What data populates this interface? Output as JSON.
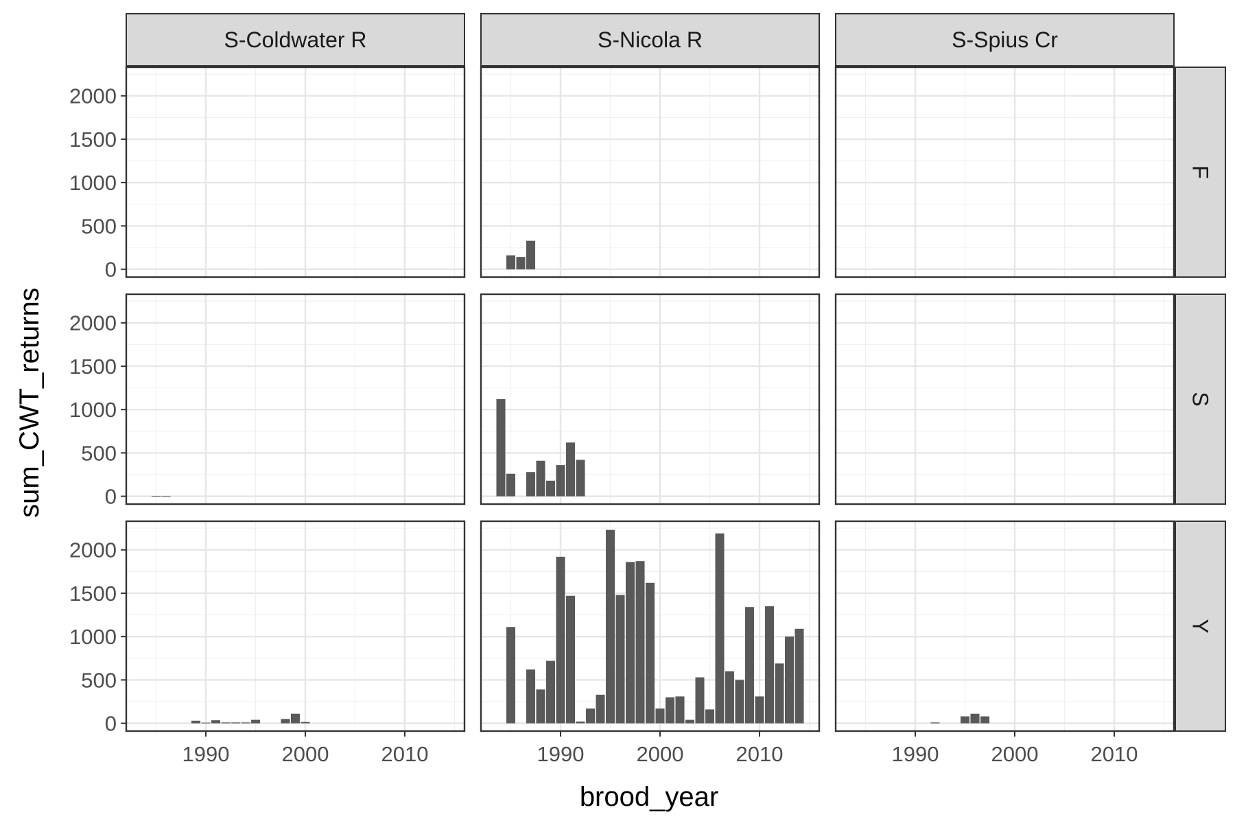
{
  "chart_data": {
    "type": "bar",
    "title": "",
    "xlabel": "brood_year",
    "ylabel": "sum_CWT_returns",
    "xlim": [
      1982,
      2016
    ],
    "ylim": [
      -90,
      2330
    ],
    "x_ticks": [
      1990,
      2000,
      2010
    ],
    "x_tick_labels": [
      "1990",
      "2000",
      "2010"
    ],
    "y_ticks": [
      0,
      500,
      1000,
      1500,
      2000
    ],
    "y_tick_labels": [
      "0",
      "500",
      "1000",
      "1500",
      "2000"
    ],
    "grid": true,
    "legend": "none",
    "bar_color": "#595959",
    "columns": [
      "S-Coldwater R",
      "S-Nicola R",
      "S-Spius Cr"
    ],
    "rows": [
      "F",
      "S",
      "Y"
    ],
    "panels": [
      {
        "column": "S-Coldwater R",
        "row": "F",
        "x": [],
        "y": []
      },
      {
        "column": "S-Nicola R",
        "row": "F",
        "x": [
          1985,
          1986,
          1987
        ],
        "y": [
          160,
          140,
          330
        ]
      },
      {
        "column": "S-Spius Cr",
        "row": "F",
        "x": [],
        "y": []
      },
      {
        "column": "S-Coldwater R",
        "row": "S",
        "x": [
          1985,
          1986
        ],
        "y": [
          5,
          3
        ]
      },
      {
        "column": "S-Nicola R",
        "row": "S",
        "x": [
          1984,
          1985,
          1987,
          1988,
          1989,
          1990,
          1991,
          1992
        ],
        "y": [
          1120,
          260,
          280,
          410,
          180,
          360,
          620,
          420
        ]
      },
      {
        "column": "S-Spius Cr",
        "row": "S",
        "x": [],
        "y": []
      },
      {
        "column": "S-Coldwater R",
        "row": "Y",
        "x": [
          1989,
          1990,
          1991,
          1992,
          1993,
          1994,
          1995,
          1998,
          1999,
          2000
        ],
        "y": [
          30,
          8,
          35,
          10,
          10,
          10,
          40,
          50,
          110,
          15
        ]
      },
      {
        "column": "S-Nicola R",
        "row": "Y",
        "x": [
          1985,
          1987,
          1988,
          1989,
          1990,
          1991,
          1992,
          1993,
          1994,
          1995,
          1996,
          1997,
          1998,
          1999,
          2000,
          2001,
          2002,
          2003,
          2004,
          2005,
          2006,
          2007,
          2008,
          2009,
          2010,
          2011,
          2012,
          2013,
          2014
        ],
        "y": [
          1110,
          620,
          390,
          720,
          1920,
          1470,
          20,
          170,
          330,
          2230,
          1480,
          1860,
          1870,
          1620,
          170,
          300,
          310,
          40,
          530,
          160,
          2190,
          600,
          500,
          1340,
          310,
          1350,
          690,
          1000,
          1090
        ]
      },
      {
        "column": "S-Spius Cr",
        "row": "Y",
        "x": [
          1992,
          1995,
          1996,
          1997
        ],
        "y": [
          10,
          80,
          110,
          80
        ]
      }
    ]
  }
}
